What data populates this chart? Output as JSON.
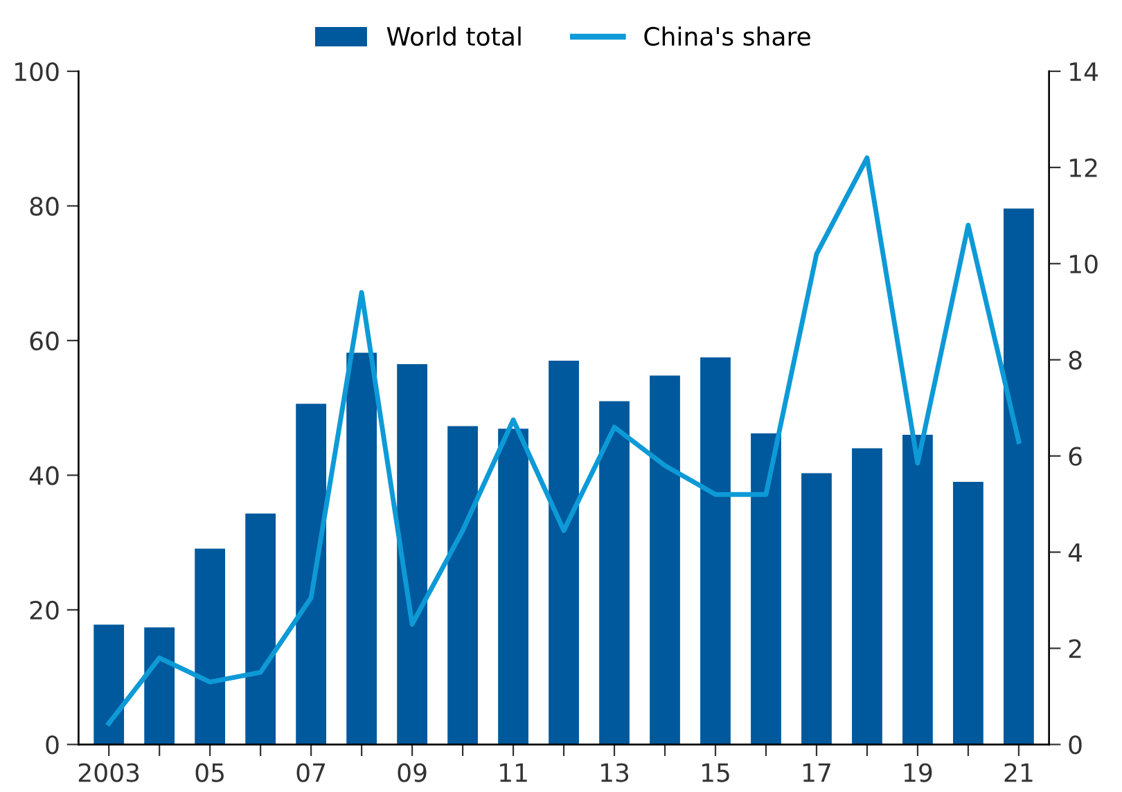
{
  "chart_data": {
    "type": "bar",
    "categories": [
      "2003",
      null,
      "05",
      null,
      "07",
      null,
      "09",
      null,
      "11",
      null,
      "13",
      null,
      "15",
      null,
      "17",
      null,
      "19",
      null,
      "21"
    ],
    "series": [
      {
        "name": "World total",
        "color": "#00599c",
        "values": [
          17.8,
          17.4,
          29.1,
          34.3,
          50.6,
          58.2,
          56.5,
          47.3,
          46.9,
          57.0,
          51.0,
          54.8,
          57.5,
          46.2,
          40.3,
          44.0,
          46.0,
          39.0,
          79.6
        ]
      },
      {
        "name": "China's share",
        "type": "line",
        "axis": "y2",
        "color": "#0d9ad6",
        "values": [
          0.44,
          1.8,
          1.3,
          1.5,
          3.05,
          9.4,
          2.5,
          4.45,
          6.75,
          4.45,
          6.6,
          5.8,
          5.2,
          5.2,
          10.2,
          12.2,
          5.85,
          10.8,
          6.3
        ]
      }
    ],
    "ylim": [
      0,
      100
    ],
    "yticks": [
      0,
      20,
      40,
      60,
      80,
      100
    ],
    "y2lim": [
      0,
      14
    ],
    "y2ticks": [
      0,
      2,
      4,
      6,
      8,
      10,
      12,
      14
    ],
    "legend": "top",
    "grid": false,
    "marker": "none",
    "line_style": "solid"
  }
}
